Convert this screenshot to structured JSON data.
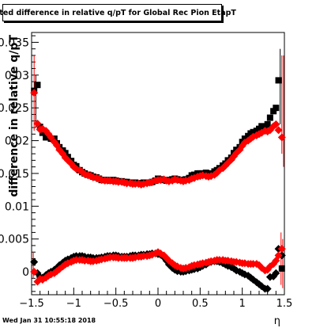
{
  "title": "Fitted difference in relative q/pT for Global Rec Pion EtapT",
  "footer": {
    "date": "Wed Jan 31 10:55:18 2018"
  },
  "chart_data": {
    "type": "scatter",
    "xlabel": "η",
    "ylabel": "difference in relative q/pT",
    "xlim": [
      -1.5,
      1.5
    ],
    "ylim": [
      -0.0035,
      0.0365
    ],
    "x_ticks": [
      -1.5,
      -1,
      -0.5,
      0,
      0.5,
      1,
      1.5
    ],
    "x_tick_labels": [
      "−1.5",
      "−1",
      "−0.5",
      "0",
      "0.5",
      "1",
      "1.5"
    ],
    "y_ticks": [
      0,
      0.005,
      0.01,
      0.015,
      0.02,
      0.025,
      0.03,
      0.035
    ],
    "y_tick_labels": [
      "0",
      "0.005",
      "0.01",
      "0.015",
      "0.02",
      "0.025",
      "0.03",
      "0.035"
    ],
    "grid": false,
    "colors": {
      "black_series": "#000000",
      "red_series": "#ff0000"
    },
    "series": [
      {
        "color": "#000000",
        "marker": "square",
        "x": [
          -1.47,
          -1.43,
          -1.4,
          -1.37,
          -1.33,
          -1.3,
          -1.27,
          -1.23,
          -1.2,
          -1.17,
          -1.13,
          -1.1,
          -1.07,
          -1.03,
          -1.0,
          -0.97,
          -0.93,
          -0.9,
          -0.87,
          -0.83,
          -0.8,
          -0.77,
          -0.73,
          -0.7,
          -0.67,
          -0.63,
          -0.6,
          -0.57,
          -0.53,
          -0.5,
          -0.47,
          -0.43,
          -0.4,
          -0.37,
          -0.33,
          -0.3,
          -0.27,
          -0.23,
          -0.2,
          -0.17,
          -0.13,
          -0.1,
          -0.07,
          -0.03,
          0.0,
          0.03,
          0.07,
          0.1,
          0.13,
          0.17,
          0.2,
          0.23,
          0.27,
          0.3,
          0.33,
          0.37,
          0.4,
          0.43,
          0.47,
          0.5,
          0.53,
          0.57,
          0.6,
          0.63,
          0.67,
          0.7,
          0.73,
          0.77,
          0.8,
          0.83,
          0.87,
          0.9,
          0.93,
          0.97,
          1.0,
          1.03,
          1.07,
          1.1,
          1.13,
          1.17,
          1.2,
          1.23,
          1.27,
          1.3,
          1.33,
          1.37,
          1.4,
          1.43,
          1.47
        ],
        "y": [
          0.0276,
          0.0285,
          0.0221,
          0.0212,
          0.0205,
          0.0207,
          0.0203,
          0.0203,
          0.0196,
          0.019,
          0.0185,
          0.0181,
          0.0175,
          0.0169,
          0.0163,
          0.0161,
          0.0155,
          0.0152,
          0.015,
          0.0148,
          0.0147,
          0.0145,
          0.0144,
          0.0142,
          0.014,
          0.014,
          0.014,
          0.0139,
          0.014,
          0.0139,
          0.0138,
          0.0138,
          0.0137,
          0.0137,
          0.0136,
          0.0136,
          0.0136,
          0.0135,
          0.0135,
          0.0136,
          0.0136,
          0.0136,
          0.0137,
          0.0139,
          0.0142,
          0.0141,
          0.014,
          0.0139,
          0.014,
          0.0141,
          0.0142,
          0.0141,
          0.014,
          0.014,
          0.0141,
          0.0143,
          0.0147,
          0.0148,
          0.015,
          0.015,
          0.015,
          0.0151,
          0.015,
          0.0149,
          0.0153,
          0.0155,
          0.0158,
          0.0162,
          0.0165,
          0.017,
          0.0174,
          0.0181,
          0.0186,
          0.019,
          0.0198,
          0.0203,
          0.0207,
          0.0211,
          0.0213,
          0.0215,
          0.0218,
          0.0222,
          0.0219,
          0.0225,
          0.0235,
          0.0245,
          0.025,
          0.0292,
          0.0005
        ]
      },
      {
        "color": "#ff0000",
        "marker": "diamond",
        "x": [
          -1.47,
          -1.43,
          -1.4,
          -1.37,
          -1.33,
          -1.3,
          -1.27,
          -1.23,
          -1.2,
          -1.17,
          -1.13,
          -1.1,
          -1.07,
          -1.03,
          -1.0,
          -0.97,
          -0.93,
          -0.9,
          -0.87,
          -0.83,
          -0.8,
          -0.77,
          -0.73,
          -0.7,
          -0.67,
          -0.63,
          -0.6,
          -0.57,
          -0.53,
          -0.5,
          -0.47,
          -0.43,
          -0.4,
          -0.37,
          -0.33,
          -0.3,
          -0.27,
          -0.23,
          -0.2,
          -0.17,
          -0.13,
          -0.1,
          -0.07,
          -0.03,
          0.0,
          0.03,
          0.07,
          0.1,
          0.13,
          0.17,
          0.2,
          0.23,
          0.27,
          0.3,
          0.33,
          0.37,
          0.4,
          0.43,
          0.47,
          0.5,
          0.53,
          0.57,
          0.6,
          0.63,
          0.67,
          0.7,
          0.73,
          0.77,
          0.8,
          0.83,
          0.87,
          0.9,
          0.93,
          0.97,
          1.0,
          1.03,
          1.07,
          1.1,
          1.13,
          1.17,
          1.2,
          1.23,
          1.27,
          1.3,
          1.33,
          1.37,
          1.4,
          1.43,
          1.47
        ],
        "y": [
          0.0273,
          0.0226,
          0.0217,
          0.0218,
          0.0215,
          0.021,
          0.0205,
          0.0198,
          0.0193,
          0.0186,
          0.018,
          0.0174,
          0.017,
          0.0165,
          0.016,
          0.0157,
          0.0155,
          0.0152,
          0.0149,
          0.0147,
          0.0146,
          0.0144,
          0.0143,
          0.0142,
          0.014,
          0.0139,
          0.0139,
          0.0139,
          0.0138,
          0.0138,
          0.0137,
          0.0137,
          0.0136,
          0.0135,
          0.0135,
          0.0134,
          0.0134,
          0.0134,
          0.0133,
          0.0134,
          0.0135,
          0.0136,
          0.0137,
          0.0139,
          0.014,
          0.014,
          0.0141,
          0.0139,
          0.0138,
          0.0139,
          0.0141,
          0.014,
          0.0139,
          0.0138,
          0.0139,
          0.014,
          0.0142,
          0.0143,
          0.0145,
          0.0146,
          0.0147,
          0.0146,
          0.0145,
          0.0146,
          0.0148,
          0.0151,
          0.0155,
          0.0158,
          0.0162,
          0.0166,
          0.0171,
          0.0176,
          0.0181,
          0.0186,
          0.0192,
          0.0197,
          0.02,
          0.0203,
          0.0206,
          0.0208,
          0.021,
          0.0212,
          0.0215,
          0.0214,
          0.0216,
          0.0222,
          0.0225,
          0.0216,
          0.0205
        ]
      },
      {
        "color": "#000000",
        "marker": "diamond",
        "x": [
          -1.47,
          -1.43,
          -1.4,
          -1.37,
          -1.33,
          -1.3,
          -1.27,
          -1.23,
          -1.2,
          -1.17,
          -1.13,
          -1.1,
          -1.07,
          -1.03,
          -1.0,
          -0.97,
          -0.93,
          -0.9,
          -0.87,
          -0.83,
          -0.8,
          -0.77,
          -0.73,
          -0.7,
          -0.67,
          -0.63,
          -0.6,
          -0.57,
          -0.53,
          -0.5,
          -0.47,
          -0.43,
          -0.4,
          -0.37,
          -0.33,
          -0.3,
          -0.27,
          -0.23,
          -0.2,
          -0.17,
          -0.13,
          -0.1,
          -0.07,
          -0.03,
          0.0,
          0.03,
          0.07,
          0.1,
          0.13,
          0.17,
          0.2,
          0.23,
          0.27,
          0.3,
          0.33,
          0.37,
          0.4,
          0.43,
          0.47,
          0.5,
          0.53,
          0.57,
          0.6,
          0.63,
          0.67,
          0.7,
          0.73,
          0.77,
          0.8,
          0.83,
          0.87,
          0.9,
          0.93,
          0.97,
          1.0,
          1.03,
          1.07,
          1.1,
          1.13,
          1.17,
          1.2,
          1.23,
          1.27,
          1.3,
          1.33,
          1.37,
          1.4,
          1.43,
          1.47
        ],
        "y": [
          0.0015,
          -0.0002,
          -0.0008,
          -0.0009,
          -0.0005,
          -0.0002,
          0.0,
          0.0003,
          0.0006,
          0.001,
          0.0014,
          0.0017,
          0.0019,
          0.0021,
          0.0023,
          0.0024,
          0.0024,
          0.0024,
          0.0023,
          0.0022,
          0.0022,
          0.0021,
          0.0021,
          0.0021,
          0.0022,
          0.0023,
          0.0024,
          0.0024,
          0.0025,
          0.0025,
          0.0024,
          0.0023,
          0.0023,
          0.0023,
          0.0024,
          0.0025,
          0.0025,
          0.0025,
          0.0026,
          0.0026,
          0.0027,
          0.0027,
          0.0028,
          0.0028,
          0.0027,
          0.0026,
          0.0022,
          0.0017,
          0.0011,
          0.0006,
          0.0003,
          0.0001,
          0.0,
          0.0,
          0.0001,
          0.0002,
          0.0003,
          0.0004,
          0.0005,
          0.0007,
          0.0009,
          0.0011,
          0.0014,
          0.0015,
          0.0016,
          0.0016,
          0.0015,
          0.0013,
          0.0011,
          0.0009,
          0.0007,
          0.0005,
          0.0002,
          0.0,
          -0.0002,
          -0.0004,
          -0.0006,
          -0.0009,
          -0.0012,
          -0.0016,
          -0.0019,
          -0.0022,
          -0.0026,
          -0.0026,
          -0.0008,
          -0.0007,
          -0.0002,
          0.0035,
          0.0025
        ]
      },
      {
        "color": "#ff0000",
        "marker": "diamond",
        "x": [
          -1.47,
          -1.43,
          -1.4,
          -1.37,
          -1.33,
          -1.3,
          -1.27,
          -1.23,
          -1.2,
          -1.17,
          -1.13,
          -1.1,
          -1.07,
          -1.03,
          -1.0,
          -0.97,
          -0.93,
          -0.9,
          -0.87,
          -0.83,
          -0.8,
          -0.77,
          -0.73,
          -0.7,
          -0.67,
          -0.63,
          -0.6,
          -0.57,
          -0.53,
          -0.5,
          -0.47,
          -0.43,
          -0.4,
          -0.37,
          -0.33,
          -0.3,
          -0.27,
          -0.23,
          -0.2,
          -0.17,
          -0.13,
          -0.1,
          -0.07,
          -0.03,
          0.0,
          0.03,
          0.07,
          0.1,
          0.13,
          0.17,
          0.2,
          0.23,
          0.27,
          0.3,
          0.33,
          0.37,
          0.4,
          0.43,
          0.47,
          0.5,
          0.53,
          0.57,
          0.6,
          0.63,
          0.67,
          0.7,
          0.73,
          0.77,
          0.8,
          0.83,
          0.87,
          0.9,
          0.93,
          0.97,
          1.0,
          1.03,
          1.07,
          1.1,
          1.13,
          1.17,
          1.2,
          1.23,
          1.27,
          1.3,
          1.33,
          1.37,
          1.4,
          1.43,
          1.47
        ],
        "y": [
          0.0,
          -0.0015,
          -0.0011,
          -0.0012,
          -0.0009,
          -0.0006,
          -0.0004,
          -0.0002,
          0.0001,
          0.0004,
          0.0008,
          0.0011,
          0.0013,
          0.0015,
          0.0017,
          0.0018,
          0.0018,
          0.0018,
          0.0017,
          0.0017,
          0.0016,
          0.0016,
          0.0017,
          0.0018,
          0.0019,
          0.002,
          0.0021,
          0.0022,
          0.0022,
          0.0022,
          0.0021,
          0.0021,
          0.0021,
          0.0021,
          0.0021,
          0.0021,
          0.0022,
          0.0023,
          0.0023,
          0.0024,
          0.0024,
          0.0025,
          0.0026,
          0.0028,
          0.003,
          0.0028,
          0.0025,
          0.0021,
          0.0017,
          0.0013,
          0.001,
          0.0008,
          0.0006,
          0.0005,
          0.0006,
          0.0007,
          0.0009,
          0.001,
          0.0011,
          0.0012,
          0.0013,
          0.0014,
          0.0015,
          0.0016,
          0.0017,
          0.0018,
          0.0018,
          0.0018,
          0.0017,
          0.0017,
          0.0016,
          0.0015,
          0.0015,
          0.0014,
          0.0013,
          0.0013,
          0.0012,
          0.0012,
          0.0012,
          0.0012,
          0.001,
          0.0006,
          0.0002,
          0.0003,
          0.0008,
          0.0012,
          0.0017,
          0.0025,
          0.0035
        ]
      }
    ]
  }
}
